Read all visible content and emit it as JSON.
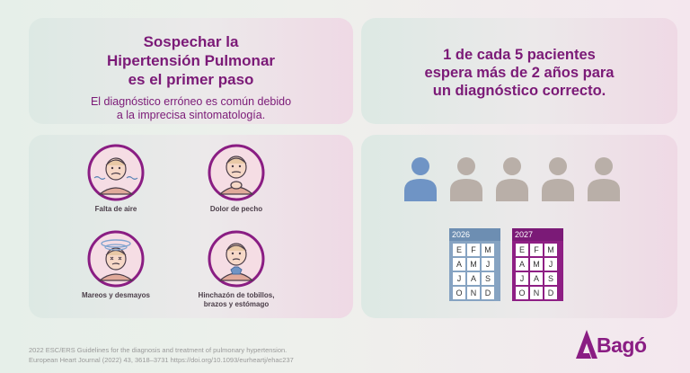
{
  "panel1": {
    "title_lines": [
      "Sospechar la",
      "Hipertensión Pulmonar",
      "es el primer paso"
    ],
    "subtitle_lines": [
      "El diagnóstico erróneo es común debido",
      "a la imprecisa sintomatología."
    ]
  },
  "panel2": {
    "stat_lines": [
      "1 de cada 5 pacientes",
      "espera más de 2 años para",
      "un diagnóstico correcto."
    ]
  },
  "symptoms": [
    {
      "label": "Falta de aire",
      "icon": "shortness-of-breath-icon"
    },
    {
      "label": "Dolor de pecho",
      "icon": "chest-pain-icon"
    },
    {
      "label": "Mareos y desmayos",
      "icon": "dizziness-icon"
    },
    {
      "label_lines": [
        "Hinchazón de tobillos,",
        "brazos y estómago"
      ],
      "icon": "swelling-icon"
    }
  ],
  "calendars": [
    {
      "year": "2026",
      "months": [
        "E",
        "F",
        "M",
        "A",
        "M",
        "J",
        "J",
        "A",
        "S",
        "O",
        "N",
        "D"
      ]
    },
    {
      "year": "2027",
      "months": [
        "E",
        "F",
        "M",
        "A",
        "M",
        "J",
        "J",
        "A",
        "S",
        "O",
        "N",
        "D"
      ]
    }
  ],
  "references": [
    "2022 ESC/ERS Guidelines for the diagnosis and treatment of pulmonary hypertension.",
    "European Heart Journal (2022) 43, 3618–3731 https://doi.org/10.1093/eurheartj/ehac237"
  ],
  "brand": {
    "name": "Bagó",
    "color": "#8a1d83"
  },
  "colors": {
    "accent": "#7b1a77",
    "person_highlight": "#6f94c5",
    "person_default": "#b9afa8"
  }
}
